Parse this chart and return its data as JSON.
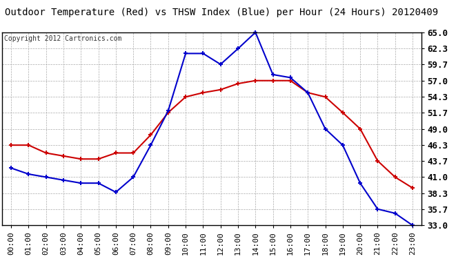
{
  "title": "Outdoor Temperature (Red) vs THSW Index (Blue) per Hour (24 Hours) 20120409",
  "copyright_text": "Copyright 2012 Cartronics.com",
  "hours": [
    "00:00",
    "01:00",
    "02:00",
    "03:00",
    "04:00",
    "05:00",
    "06:00",
    "07:00",
    "08:00",
    "09:00",
    "10:00",
    "11:00",
    "12:00",
    "13:00",
    "14:00",
    "15:00",
    "16:00",
    "17:00",
    "18:00",
    "19:00",
    "20:00",
    "21:00",
    "22:00",
    "23:00"
  ],
  "red_temp": [
    46.3,
    46.3,
    45.0,
    44.5,
    44.0,
    44.0,
    45.0,
    45.0,
    48.0,
    51.7,
    54.3,
    55.0,
    55.5,
    56.5,
    57.0,
    57.0,
    57.0,
    55.0,
    54.3,
    51.7,
    49.0,
    43.7,
    41.0,
    39.2
  ],
  "blue_thsw": [
    42.5,
    41.5,
    41.0,
    40.5,
    40.0,
    40.0,
    38.5,
    41.0,
    46.3,
    52.0,
    61.5,
    61.5,
    59.7,
    62.3,
    65.0,
    58.0,
    57.5,
    55.0,
    49.0,
    46.3,
    40.0,
    35.7,
    35.0,
    33.0
  ],
  "red_color": "#cc0000",
  "blue_color": "#0000cc",
  "bg_color": "#ffffff",
  "plot_bg_color": "#ffffff",
  "grid_color": "#aaaaaa",
  "ylim": [
    33.0,
    65.0
  ],
  "yticks": [
    33.0,
    35.7,
    38.3,
    41.0,
    43.7,
    46.3,
    49.0,
    51.7,
    54.3,
    57.0,
    59.7,
    62.3,
    65.0
  ],
  "title_fontsize": 10,
  "copyright_fontsize": 7,
  "tick_fontsize": 8,
  "ytick_fontsize": 9,
  "marker": "+",
  "markersize": 5,
  "linewidth": 1.5
}
